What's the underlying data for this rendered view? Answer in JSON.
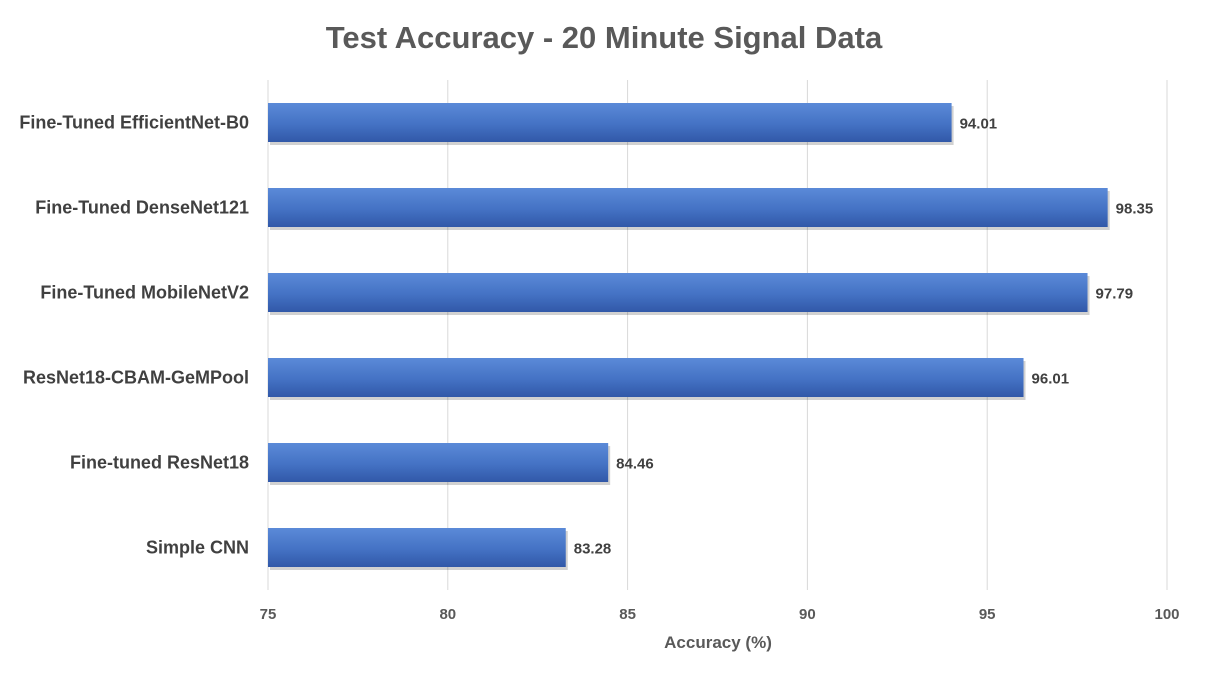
{
  "chart_data": {
    "type": "bar",
    "orientation": "horizontal",
    "title": "Test Accuracy - 20 Minute Signal Data",
    "xlabel": "Accuracy (%)",
    "ylabel": "",
    "categories": [
      "Fine-Tuned EfficientNet-B0",
      "Fine-Tuned DenseNet121",
      "Fine-Tuned MobileNetV2",
      "ResNet18-CBAM-GeMPool",
      "Fine-tuned ResNet18",
      "Simple CNN"
    ],
    "values": [
      94.01,
      98.35,
      97.79,
      96.01,
      84.46,
      83.28
    ],
    "data_labels": [
      "94.01",
      "98.35",
      "97.79",
      "96.01",
      "84.46",
      "83.28"
    ],
    "xlim": [
      75,
      100
    ],
    "xticks": [
      "75",
      "80",
      "85",
      "90",
      "95",
      "100"
    ],
    "grid": true,
    "legend": "none",
    "bar_color": "#4472C4"
  }
}
